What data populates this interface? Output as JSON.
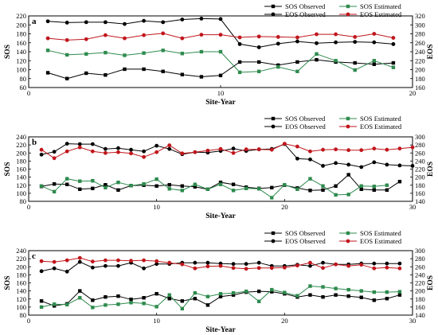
{
  "colors": {
    "sos": "#000000",
    "sos_est": "#2e8b4e",
    "eos": "#000000",
    "eos_est": "#c0161c"
  },
  "chart_data": [
    {
      "type": "line",
      "panel": "a",
      "legend": [
        {
          "label": "SOS Observed",
          "marker": "square",
          "color": "#000000"
        },
        {
          "label": "SOS Estimated",
          "marker": "square",
          "color": "#2e8b4e"
        },
        {
          "label": "EOS Observed",
          "marker": "circle",
          "color": "#000000"
        },
        {
          "label": "EOS Estimated",
          "marker": "circle",
          "color": "#c0161c"
        }
      ],
      "xlabel": "Site-Year",
      "ylabel_left": "SOS",
      "ylabel_right": "EOS",
      "xlim": [
        0,
        20
      ],
      "xticks": [
        0,
        10,
        20
      ],
      "ylim_left": [
        60,
        220
      ],
      "yticks_left": [
        60,
        80,
        100,
        120,
        140,
        160,
        180,
        200,
        220
      ],
      "ylim_right": [
        160,
        320
      ],
      "yticks_right": [
        160,
        180,
        200,
        220,
        240,
        260,
        280,
        300,
        320
      ],
      "x": [
        1,
        2,
        3,
        4,
        5,
        6,
        7,
        8,
        9,
        10,
        11,
        12,
        13,
        14,
        15,
        16,
        17,
        18,
        19
      ],
      "series": [
        {
          "name": "SOS Observed",
          "axis": "left",
          "marker": "square",
          "color": "#000000",
          "values": [
            93,
            80,
            92,
            88,
            101,
            101,
            96,
            89,
            84,
            87,
            117,
            117,
            110,
            117,
            122,
            117,
            115,
            112,
            115
          ]
        },
        {
          "name": "SOS Estimated",
          "axis": "left",
          "marker": "square",
          "color": "#2e8b4e",
          "values": [
            143,
            133,
            135,
            138,
            132,
            137,
            143,
            136,
            140,
            140,
            94,
            96,
            106,
            96,
            135,
            120,
            99,
            120,
            105
          ]
        },
        {
          "name": "EOS Observed",
          "axis": "right",
          "marker": "circle",
          "color": "#000000",
          "values": [
            308,
            305,
            306,
            306,
            302,
            309,
            306,
            312,
            314,
            313,
            257,
            250,
            258,
            263,
            259,
            261,
            262,
            261,
            257
          ]
        },
        {
          "name": "EOS Estimated",
          "axis": "right",
          "marker": "circle",
          "color": "#c0161c",
          "values": [
            270,
            266,
            268,
            277,
            270,
            277,
            281,
            270,
            278,
            278,
            272,
            274,
            273,
            272,
            279,
            279,
            273,
            280,
            271
          ]
        }
      ]
    },
    {
      "type": "line",
      "panel": "b",
      "legend": [
        {
          "label": "SOS Observed",
          "marker": "square",
          "color": "#000000"
        },
        {
          "label": "SOS Estimated",
          "marker": "square",
          "color": "#2e8b4e"
        },
        {
          "label": "EOS Observed",
          "marker": "circle",
          "color": "#000000"
        },
        {
          "label": "EOS Estimated",
          "marker": "circle",
          "color": "#c0161c"
        }
      ],
      "xlabel": "Site-Year",
      "ylabel_left": "SOS",
      "ylabel_right": "EOS",
      "xlim": [
        0,
        30
      ],
      "xticks": [
        0,
        10,
        20,
        30
      ],
      "ylim_left": [
        80,
        240
      ],
      "yticks_left": [
        80,
        100,
        120,
        140,
        160,
        180,
        200,
        220,
        240
      ],
      "ylim_right": [
        140,
        300
      ],
      "yticks_right": [
        140,
        160,
        180,
        200,
        220,
        240,
        260,
        280,
        300
      ],
      "x": [
        1,
        2,
        3,
        4,
        5,
        6,
        7,
        8,
        9,
        10,
        11,
        12,
        13,
        14,
        15,
        16,
        17,
        18,
        19,
        20,
        21,
        22,
        23,
        24,
        25,
        26,
        27,
        28,
        29,
        30
      ],
      "series": [
        {
          "name": "SOS Observed",
          "axis": "left",
          "marker": "square",
          "color": "#000000",
          "values": [
            117,
            123,
            122,
            110,
            112,
            121,
            108,
            119,
            120,
            118,
            121,
            118,
            116,
            110,
            127,
            122,
            115,
            112,
            114,
            120,
            113,
            107,
            108,
            118,
            146,
            110,
            108,
            108,
            129,
            null
          ]
        },
        {
          "name": "SOS Estimated",
          "axis": "left",
          "marker": "square",
          "color": "#2e8b4e",
          "values": [
            118,
            104,
            136,
            130,
            131,
            114,
            127,
            119,
            123,
            135,
            111,
            107,
            122,
            110,
            122,
            107,
            112,
            111,
            89,
            121,
            110,
            136,
            118,
            96,
            97,
            118,
            117,
            120,
            null,
            null
          ]
        },
        {
          "name": "EOS Observed",
          "axis": "right",
          "marker": "circle",
          "color": "#000000",
          "values": [
            256,
            263,
            283,
            282,
            282,
            270,
            272,
            268,
            264,
            278,
            270,
            257,
            262,
            261,
            265,
            271,
            265,
            269,
            270,
            282,
            246,
            244,
            228,
            235,
            231,
            225,
            237,
            231,
            229,
            228
          ]
        },
        {
          "name": "EOS Estimated",
          "axis": "right",
          "marker": "circle",
          "color": "#c0161c",
          "values": [
            268,
            247,
            264,
            274,
            264,
            260,
            262,
            259,
            250,
            262,
            279,
            259,
            262,
            266,
            270,
            260,
            269,
            269,
            268,
            283,
            276,
            264,
            268,
            269,
            267,
            267,
            271,
            268,
            271,
            274
          ]
        }
      ]
    },
    {
      "type": "line",
      "panel": "c",
      "legend": [
        {
          "label": "SOS Observed",
          "marker": "square",
          "color": "#000000"
        },
        {
          "label": "SOS Estimated",
          "marker": "square",
          "color": "#2e8b4e"
        },
        {
          "label": "EOS Observed",
          "marker": "circle",
          "color": "#000000"
        },
        {
          "label": "EOS Estimated",
          "marker": "circle",
          "color": "#c0161c"
        }
      ],
      "xlabel": "Site-Year",
      "ylabel_left": "SOS",
      "ylabel_right": "EOS",
      "xlim": [
        0,
        30
      ],
      "xticks": [
        0,
        10,
        20,
        30
      ],
      "ylim_left": [
        80,
        240
      ],
      "yticks_left": [
        80,
        100,
        120,
        140,
        160,
        180,
        200,
        220,
        240
      ],
      "ylim_right": [
        140,
        300
      ],
      "yticks_right": [
        140,
        160,
        180,
        200,
        220,
        240,
        260,
        280,
        300
      ],
      "x": [
        1,
        2,
        3,
        4,
        5,
        6,
        7,
        8,
        9,
        10,
        11,
        12,
        13,
        14,
        15,
        16,
        17,
        18,
        19,
        20,
        21,
        22,
        23,
        24,
        25,
        26,
        27,
        28,
        29
      ],
      "series": [
        {
          "name": "SOS Observed",
          "axis": "left",
          "marker": "square",
          "color": "#000000",
          "values": [
            115,
            103,
            108,
            140,
            117,
            125,
            127,
            119,
            123,
            133,
            121,
            115,
            121,
            105,
            126,
            130,
            137,
            139,
            138,
            133,
            125,
            130,
            125,
            130,
            127,
            124,
            117,
            121,
            130
          ]
        },
        {
          "name": "SOS Estimated",
          "axis": "left",
          "marker": "square",
          "color": "#2e8b4e",
          "values": [
            100,
            107,
            106,
            123,
            99,
            105,
            107,
            111,
            109,
            101,
            130,
            96,
            135,
            126,
            133,
            135,
            139,
            114,
            143,
            136,
            128,
            152,
            150,
            146,
            143,
            140,
            137,
            137,
            138
          ]
        },
        {
          "name": "EOS Observed",
          "axis": "right",
          "marker": "circle",
          "color": "#000000",
          "values": [
            249,
            256,
            248,
            272,
            258,
            262,
            262,
            270,
            256,
            267,
            267,
            270,
            270,
            270,
            268,
            267,
            267,
            270,
            262,
            262,
            265,
            262,
            270,
            266,
            266,
            268,
            268,
            268,
            268
          ]
        },
        {
          "name": "EOS Estimated",
          "axis": "right",
          "marker": "circle",
          "color": "#c0161c",
          "values": [
            274,
            272,
            276,
            282,
            273,
            276,
            276,
            275,
            276,
            274,
            270,
            266,
            256,
            261,
            262,
            257,
            255,
            257,
            257,
            258,
            263,
            270,
            257,
            266,
            262,
            265,
            256,
            258,
            256
          ]
        }
      ]
    }
  ]
}
